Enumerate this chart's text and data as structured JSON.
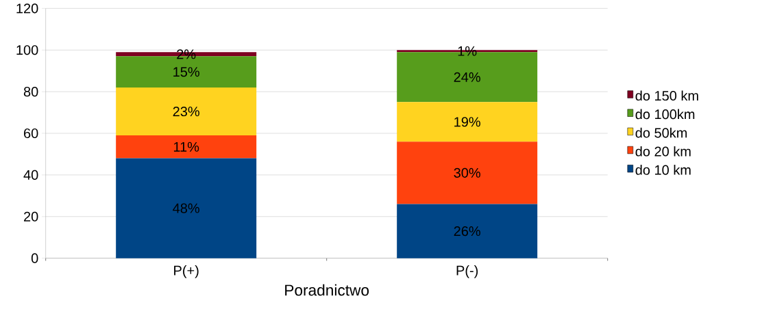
{
  "chart_data": {
    "type": "bar",
    "stacked": true,
    "xlabel": "Poradnictwo",
    "categories": [
      "P(+)",
      "P(-)"
    ],
    "series": [
      {
        "name": "do 10 km",
        "color": "#004586",
        "values": [
          48,
          26
        ],
        "value_labels": [
          "48%",
          "26%"
        ]
      },
      {
        "name": "do 20 km",
        "color": "#ff420e",
        "values": [
          11,
          30
        ],
        "value_labels": [
          "11%",
          "30%"
        ]
      },
      {
        "name": "do 50km",
        "color": "#ffd320",
        "values": [
          23,
          19
        ],
        "value_labels": [
          "23%",
          "19%"
        ]
      },
      {
        "name": "do 100km",
        "color": "#579d1c",
        "values": [
          15,
          24
        ],
        "value_labels": [
          "15%",
          "24%"
        ]
      },
      {
        "name": "do 150 km",
        "color": "#7e0021",
        "values": [
          2,
          1
        ],
        "value_labels": [
          "2%",
          "1%"
        ]
      }
    ],
    "ylim": [
      0,
      120
    ],
    "yticks": [
      0,
      20,
      40,
      60,
      80,
      100,
      120
    ],
    "grid": "y",
    "legend": "right"
  }
}
